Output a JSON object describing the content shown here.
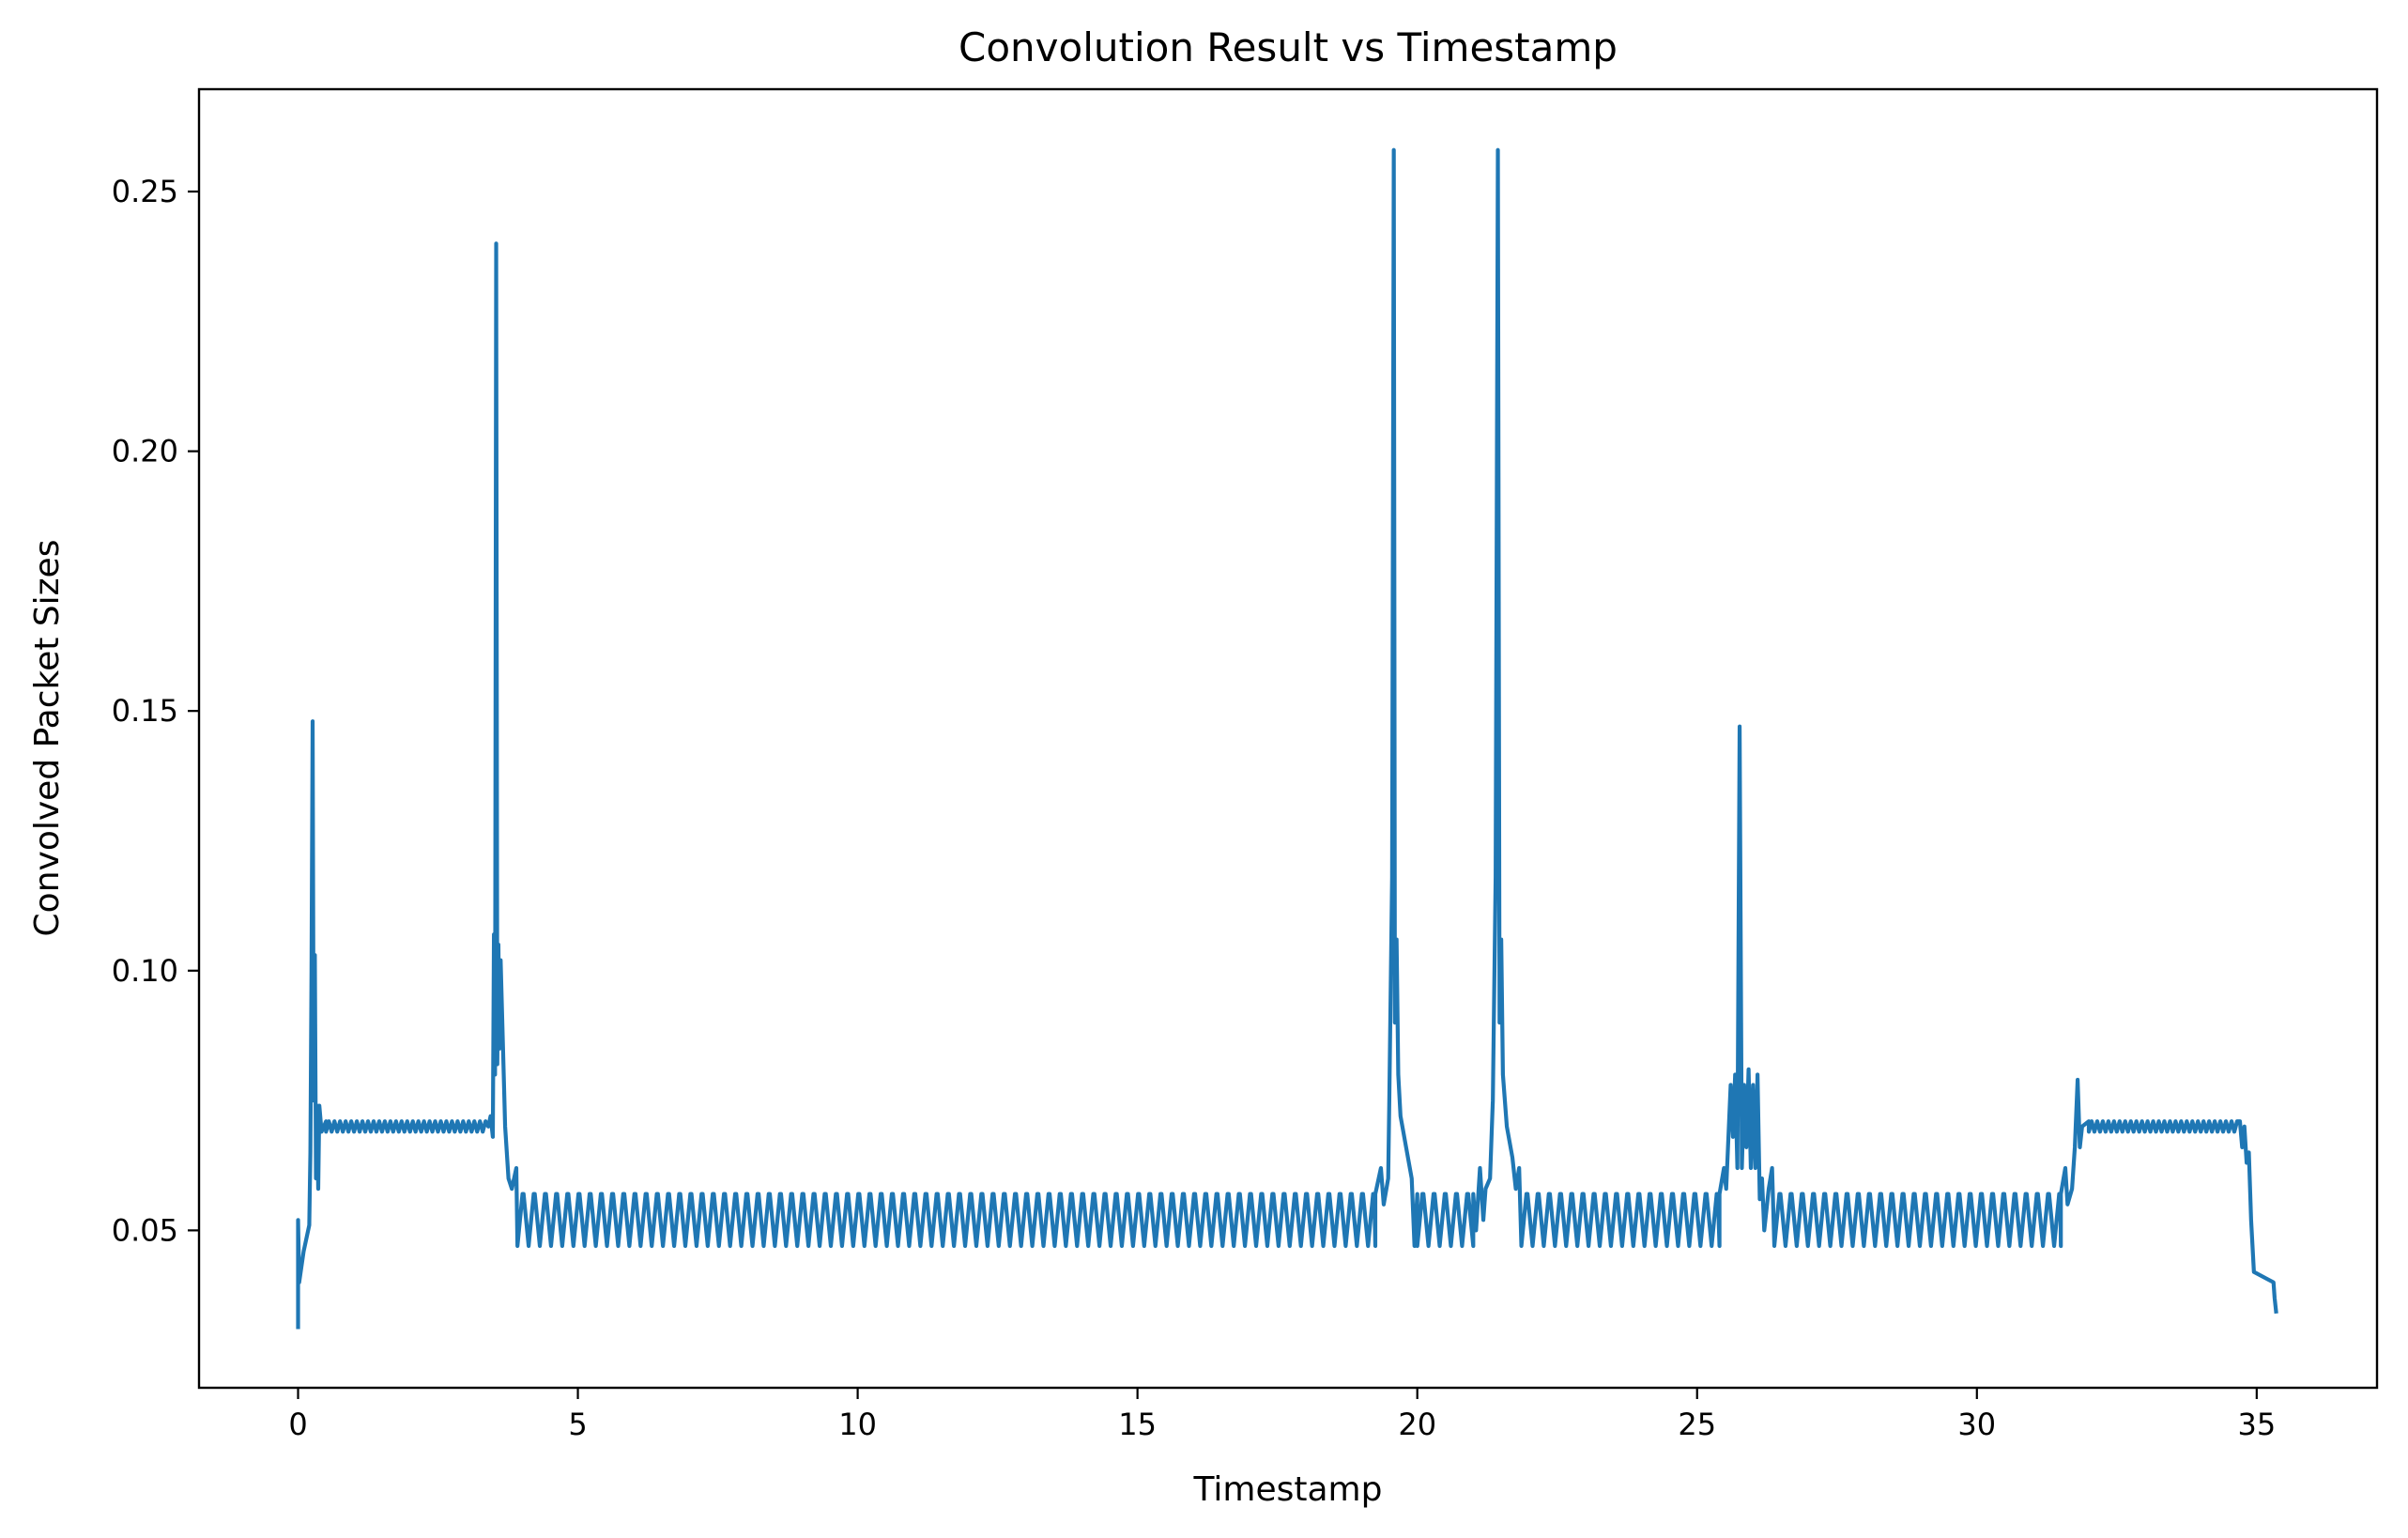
{
  "chart_data": {
    "type": "line",
    "title": "Convolution Result vs Timestamp",
    "xlabel": "Timestamp",
    "ylabel": "Convolved Packet Sizes",
    "xlim": [
      -1.77,
      37.15
    ],
    "ylim": [
      0.0197,
      0.2697
    ],
    "xticks": [
      0,
      5,
      10,
      15,
      20,
      25,
      30,
      35
    ],
    "xtick_labels": [
      "0",
      "5",
      "10",
      "15",
      "20",
      "25",
      "30",
      "35"
    ],
    "yticks": [
      0.05,
      0.1,
      0.15,
      0.2,
      0.25
    ],
    "ytick_labels": [
      "0.05",
      "0.10",
      "0.15",
      "0.20",
      "0.25"
    ],
    "grid": false,
    "legend": "none",
    "series_color": "#1f77b4",
    "oscillation": {
      "low_band": {
        "x_start": 3.9,
        "x_end": 31.5,
        "period": 0.2,
        "min": 0.047,
        "max": 0.057
      },
      "high_band": {
        "x_start": 0.5,
        "x_end": 34.7,
        "min": 0.069,
        "max": 0.071
      }
    },
    "series": [
      {
        "values": [
          [
            0.0,
            0.031
          ],
          [
            0.0,
            0.052
          ],
          [
            0.02,
            0.04
          ],
          [
            0.1,
            0.046
          ],
          [
            0.2,
            0.051
          ],
          [
            0.22,
            0.065
          ],
          [
            0.24,
            0.1
          ],
          [
            0.26,
            0.148
          ],
          [
            0.28,
            0.075
          ],
          [
            0.3,
            0.103
          ],
          [
            0.32,
            0.06
          ],
          [
            0.34,
            0.074
          ],
          [
            0.36,
            0.058
          ],
          [
            0.38,
            0.074
          ],
          [
            0.42,
            0.069
          ],
          [
            0.5,
            0.071
          ],
          [
            3.4,
            0.07
          ],
          [
            3.44,
            0.072
          ],
          [
            3.48,
            0.068
          ],
          [
            3.5,
            0.107
          ],
          [
            3.52,
            0.08
          ],
          [
            3.54,
            0.24
          ],
          [
            3.56,
            0.082
          ],
          [
            3.58,
            0.105
          ],
          [
            3.6,
            0.085
          ],
          [
            3.62,
            0.102
          ],
          [
            3.7,
            0.07
          ],
          [
            3.76,
            0.06
          ],
          [
            3.82,
            0.058
          ],
          [
            3.9,
            0.062
          ],
          [
            3.92,
            0.047
          ],
          [
            19.25,
            0.057
          ],
          [
            19.35,
            0.062
          ],
          [
            19.4,
            0.055
          ],
          [
            19.48,
            0.06
          ],
          [
            19.5,
            0.075
          ],
          [
            19.55,
            0.118
          ],
          [
            19.58,
            0.258
          ],
          [
            19.6,
            0.09
          ],
          [
            19.63,
            0.106
          ],
          [
            19.66,
            0.08
          ],
          [
            19.7,
            0.072
          ],
          [
            19.8,
            0.066
          ],
          [
            19.9,
            0.06
          ],
          [
            19.95,
            0.047
          ],
          [
            20.0,
            0.057
          ],
          [
            21.0,
            0.057
          ],
          [
            21.05,
            0.05
          ],
          [
            21.12,
            0.062
          ],
          [
            21.18,
            0.052
          ],
          [
            21.22,
            0.058
          ],
          [
            21.3,
            0.06
          ],
          [
            21.35,
            0.075
          ],
          [
            21.4,
            0.118
          ],
          [
            21.44,
            0.258
          ],
          [
            21.47,
            0.09
          ],
          [
            21.5,
            0.106
          ],
          [
            21.53,
            0.08
          ],
          [
            21.6,
            0.07
          ],
          [
            21.7,
            0.064
          ],
          [
            21.76,
            0.058
          ],
          [
            21.82,
            0.062
          ],
          [
            21.86,
            0.047
          ],
          [
            25.4,
            0.057
          ],
          [
            25.48,
            0.062
          ],
          [
            25.52,
            0.058
          ],
          [
            25.6,
            0.078
          ],
          [
            25.64,
            0.068
          ],
          [
            25.68,
            0.08
          ],
          [
            25.72,
            0.062
          ],
          [
            25.76,
            0.147
          ],
          [
            25.8,
            0.062
          ],
          [
            25.84,
            0.078
          ],
          [
            25.88,
            0.066
          ],
          [
            25.92,
            0.081
          ],
          [
            25.96,
            0.062
          ],
          [
            26.0,
            0.078
          ],
          [
            26.04,
            0.062
          ],
          [
            26.08,
            0.08
          ],
          [
            26.12,
            0.056
          ],
          [
            26.16,
            0.06
          ],
          [
            26.2,
            0.05
          ],
          [
            26.28,
            0.058
          ],
          [
            26.34,
            0.062
          ],
          [
            26.38,
            0.047
          ],
          [
            31.5,
            0.057
          ],
          [
            31.58,
            0.062
          ],
          [
            31.62,
            0.055
          ],
          [
            31.7,
            0.058
          ],
          [
            31.75,
            0.066
          ],
          [
            31.8,
            0.079
          ],
          [
            31.84,
            0.066
          ],
          [
            31.88,
            0.07
          ],
          [
            32.0,
            0.071
          ],
          [
            34.7,
            0.071
          ],
          [
            34.74,
            0.066
          ],
          [
            34.78,
            0.07
          ],
          [
            34.82,
            0.063
          ],
          [
            34.86,
            0.065
          ],
          [
            34.9,
            0.052
          ],
          [
            34.95,
            0.042
          ],
          [
            35.3,
            0.04
          ],
          [
            35.32,
            0.037
          ],
          [
            35.35,
            0.034
          ]
        ]
      }
    ]
  }
}
